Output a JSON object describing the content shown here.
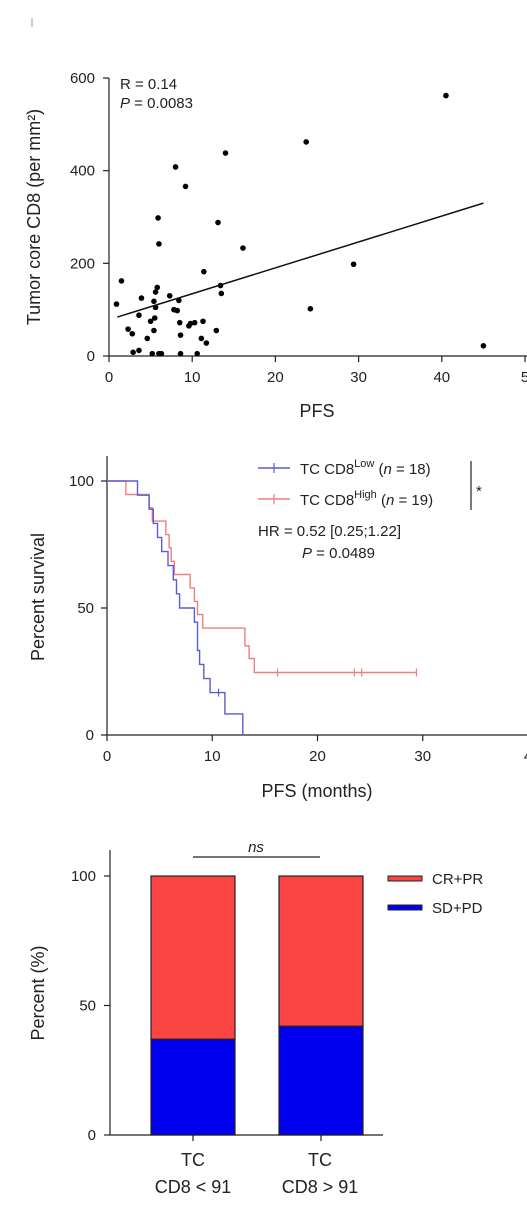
{
  "chart_data": [
    {
      "type": "scatter",
      "xlabel": "PFS",
      "ylabel": "Tumor core CD8 (per mm²)",
      "xlim": [
        0,
        50
      ],
      "ylim": [
        0,
        600
      ],
      "xticks": [
        "0",
        "10",
        "20",
        "30",
        "40",
        "5"
      ],
      "yticks": [
        "0",
        "200",
        "400",
        "600"
      ],
      "annotation": {
        "r_text": "R = 0.14",
        "p_label": "P",
        "p_value": " = 0.0083"
      },
      "fit": {
        "x": [
          1,
          45
        ],
        "y": [
          84,
          330
        ]
      },
      "points": [
        [
          0.9,
          112
        ],
        [
          1.5,
          162
        ],
        [
          2.3,
          58
        ],
        [
          2.8,
          48
        ],
        [
          2.9,
          8
        ],
        [
          3.6,
          12
        ],
        [
          3.6,
          88
        ],
        [
          3.9,
          125
        ],
        [
          4.6,
          38
        ],
        [
          5.0,
          75
        ],
        [
          5.2,
          5
        ],
        [
          5.4,
          55
        ],
        [
          5.4,
          118
        ],
        [
          5.5,
          82
        ],
        [
          5.6,
          105
        ],
        [
          5.6,
          138
        ],
        [
          5.8,
          148
        ],
        [
          5.9,
          298
        ],
        [
          6.0,
          242
        ],
        [
          6.0,
          5
        ],
        [
          6.3,
          5
        ],
        [
          7.3,
          130
        ],
        [
          7.8,
          100
        ],
        [
          8.0,
          408
        ],
        [
          8.2,
          98
        ],
        [
          8.4,
          120
        ],
        [
          8.5,
          72
        ],
        [
          8.6,
          5
        ],
        [
          8.6,
          45
        ],
        [
          9.2,
          366
        ],
        [
          9.6,
          65
        ],
        [
          9.8,
          70
        ],
        [
          10.3,
          72
        ],
        [
          10.6,
          5
        ],
        [
          11.1,
          38
        ],
        [
          11.3,
          75
        ],
        [
          11.4,
          182
        ],
        [
          11.7,
          28
        ],
        [
          12.9,
          55
        ],
        [
          13.1,
          288
        ],
        [
          13.4,
          152
        ],
        [
          13.5,
          135
        ],
        [
          14.0,
          438
        ],
        [
          16.1,
          233
        ],
        [
          23.7,
          462
        ],
        [
          24.2,
          102
        ],
        [
          29.4,
          198
        ],
        [
          40.5,
          562
        ],
        [
          45.0,
          22
        ]
      ]
    },
    {
      "type": "line",
      "xlabel": "PFS (months)",
      "ylabel": "Percent survival",
      "xlim": [
        0,
        40
      ],
      "ylim": [
        0,
        100
      ],
      "xticks": [
        "0",
        "10",
        "20",
        "30",
        "4"
      ],
      "yticks": [
        "0",
        "50",
        "100"
      ],
      "series": [
        {
          "name_main": "TC CD8",
          "name_sup": "Low",
          "n_open": " (",
          "n_italic": "n",
          "n_close": " = 18)",
          "color": "#5b5bd6",
          "steps": [
            [
              0,
              100
            ],
            [
              2.9,
              100
            ],
            [
              2.9,
              94.4
            ],
            [
              4.0,
              94.4
            ],
            [
              4.0,
              88.9
            ],
            [
              4.4,
              88.9
            ],
            [
              4.4,
              83.3
            ],
            [
              4.8,
              83.3
            ],
            [
              4.8,
              77.8
            ],
            [
              5.2,
              77.8
            ],
            [
              5.2,
              72.2
            ],
            [
              5.8,
              72.2
            ],
            [
              5.8,
              66.7
            ],
            [
              6.3,
              66.7
            ],
            [
              6.3,
              61.1
            ],
            [
              6.6,
              61.1
            ],
            [
              6.6,
              55.6
            ],
            [
              6.9,
              55.6
            ],
            [
              6.9,
              50.0
            ],
            [
              8.3,
              50.0
            ],
            [
              8.3,
              44.4
            ],
            [
              8.6,
              44.4
            ],
            [
              8.6,
              33.3
            ],
            [
              8.8,
              33.3
            ],
            [
              8.8,
              27.8
            ],
            [
              9.2,
              27.8
            ],
            [
              9.2,
              22.2
            ],
            [
              9.8,
              22.2
            ],
            [
              9.8,
              16.7
            ],
            [
              11.2,
              16.7
            ],
            [
              11.2,
              8.3
            ],
            [
              12.9,
              8.3
            ],
            [
              12.9,
              0
            ]
          ],
          "censors": [
            [
              10.6,
              16.7
            ]
          ]
        },
        {
          "name_main": "TC CD8",
          "name_sup": "High",
          "n_open": " (",
          "n_italic": "n",
          "n_close": " = 19)",
          "color": "#ef7f7f",
          "steps": [
            [
              0,
              100
            ],
            [
              1.8,
              100
            ],
            [
              1.8,
              94.7
            ],
            [
              4.0,
              94.7
            ],
            [
              4.0,
              89.5
            ],
            [
              4.3,
              89.5
            ],
            [
              4.3,
              84.2
            ],
            [
              5.6,
              84.2
            ],
            [
              5.6,
              78.9
            ],
            [
              5.9,
              78.9
            ],
            [
              5.9,
              73.7
            ],
            [
              6.1,
              73.7
            ],
            [
              6.1,
              68.4
            ],
            [
              6.4,
              68.4
            ],
            [
              6.4,
              63.2
            ],
            [
              7.9,
              63.2
            ],
            [
              7.9,
              57.9
            ],
            [
              8.3,
              57.9
            ],
            [
              8.3,
              52.6
            ],
            [
              8.6,
              52.6
            ],
            [
              8.6,
              47.4
            ],
            [
              9.1,
              47.4
            ],
            [
              9.1,
              42.1
            ],
            [
              13.1,
              42.1
            ],
            [
              13.1,
              35.1
            ],
            [
              13.5,
              35.1
            ],
            [
              13.5,
              30.1
            ],
            [
              14.0,
              30.1
            ],
            [
              14.0,
              24.6
            ],
            [
              29.4,
              24.6
            ]
          ],
          "censors": [
            [
              16.2,
              24.6
            ],
            [
              23.5,
              24.6
            ],
            [
              24.2,
              24.6
            ],
            [
              29.4,
              24.6
            ]
          ]
        }
      ],
      "sig_mark": "*",
      "hr_text": "HR = 0.52 [0.25;1.22]",
      "p_label": "P",
      "p_value": " = 0.0489"
    },
    {
      "type": "bar",
      "stacked": true,
      "ylabel": "Percent (%)",
      "ylim": [
        0,
        100
      ],
      "yticks": [
        "0",
        "50",
        "100"
      ],
      "categories": [
        {
          "line1": "TC",
          "line2": "CD8 < 91"
        },
        {
          "line1": "TC",
          "line2": "CD8 > 91"
        }
      ],
      "series": [
        {
          "name": "SD+PD",
          "color": "#0000ee",
          "values": [
            37,
            42
          ]
        },
        {
          "name": "CR+PR",
          "color": "#fb4444",
          "values": [
            63,
            58
          ]
        }
      ],
      "sig_label": "ns"
    }
  ]
}
